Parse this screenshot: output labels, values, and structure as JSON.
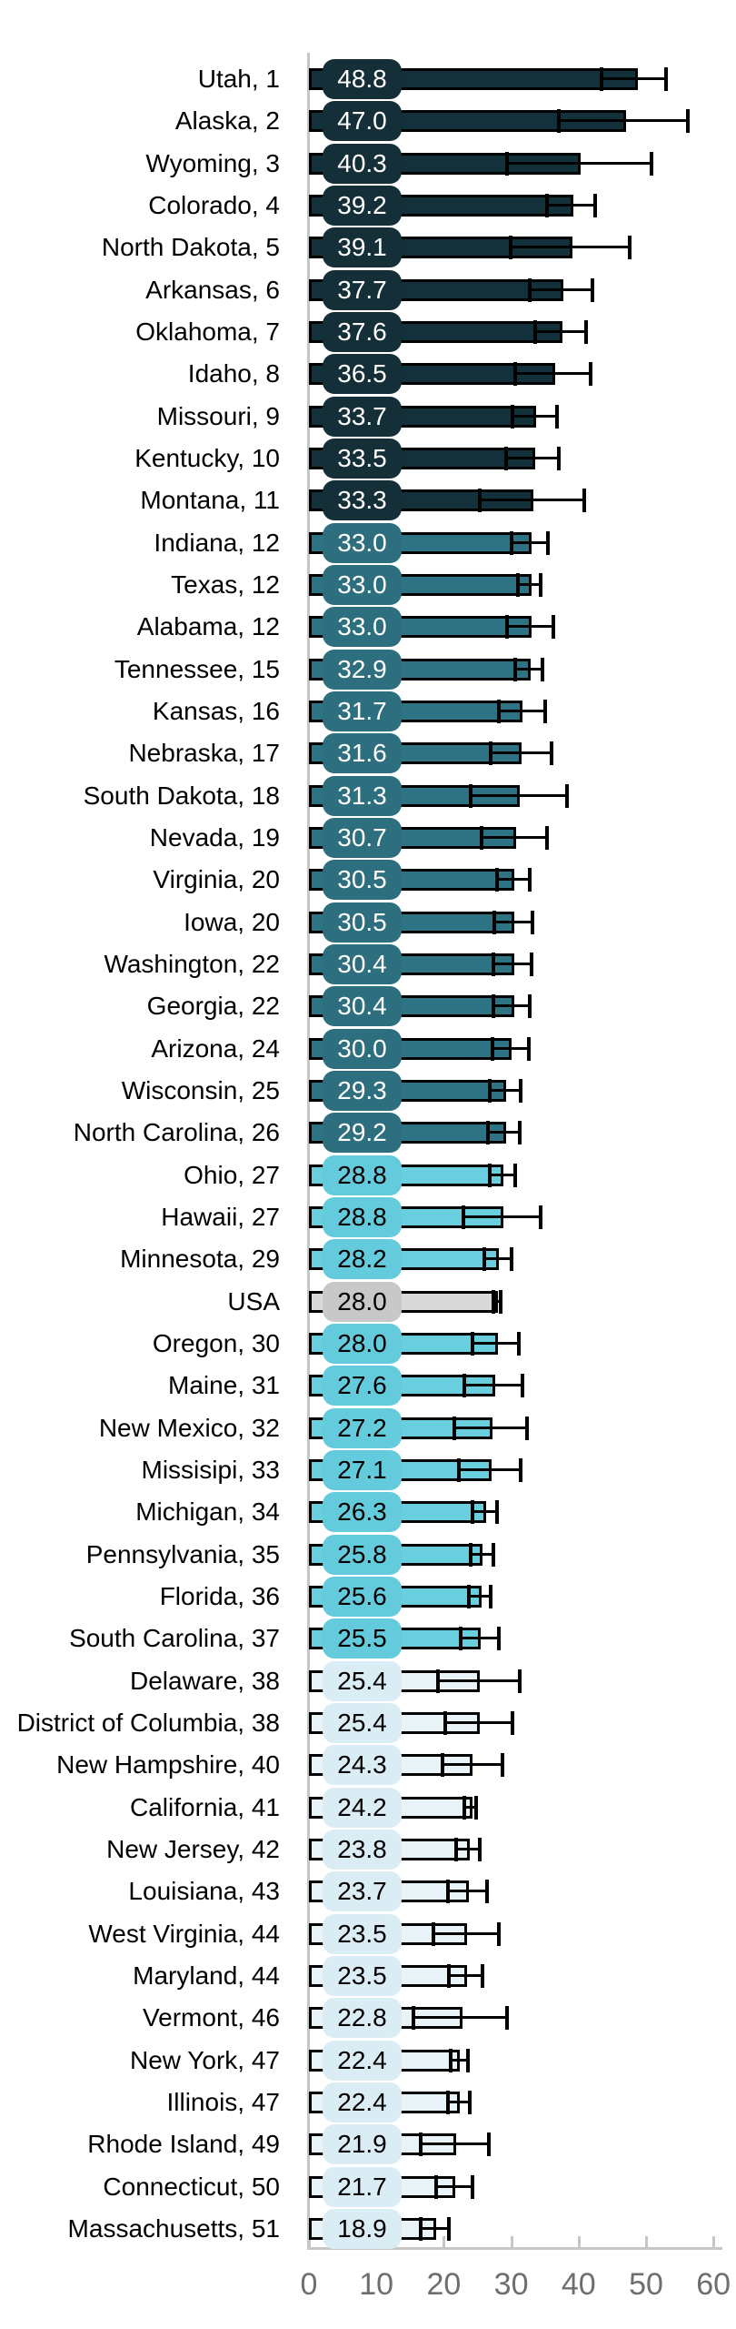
{
  "chart_data": {
    "type": "bar",
    "orientation": "horizontal",
    "title": "",
    "xlabel": "",
    "ylabel": "",
    "xlim": [
      0,
      62
    ],
    "x_ticks": [
      0,
      10,
      20,
      30,
      40,
      50,
      60
    ],
    "x_tick_labels": [
      "0",
      "10",
      "20",
      "30",
      "40",
      "50",
      "60"
    ],
    "grid": false,
    "legend": false,
    "error_bars": true,
    "colors": {
      "dark": {
        "badge": "#142f38",
        "bar": "#13313b",
        "text": "#ffffff"
      },
      "teal": {
        "badge": "#2d6f7e",
        "bar": "#2e7383",
        "text": "#ffffff"
      },
      "cyan": {
        "badge": "#63cbdc",
        "bar": "#69cedd",
        "text": "#000000"
      },
      "gray": {
        "badge": "#c8c8c8",
        "bar": "#d9d9d9",
        "text": "#000000"
      },
      "pale": {
        "badge": "#dbedf4",
        "bar": "#e8f3f8",
        "text": "#000000"
      },
      "axis_line": "#c6c6c6",
      "tick_label": "#6e6e6e",
      "row_label": "#000000",
      "error_bar": "#000000"
    },
    "rows": [
      {
        "label": "Utah, 1",
        "state": "Utah",
        "rank": 1,
        "value": 48.8,
        "value_label": "48.8",
        "ci_low": 43.4,
        "ci_high": 53.0,
        "group": "dark"
      },
      {
        "label": "Alaska, 2",
        "state": "Alaska",
        "rank": 2,
        "value": 47.0,
        "value_label": "47.0",
        "ci_low": 37.1,
        "ci_high": 56.2,
        "group": "dark"
      },
      {
        "label": "Wyoming, 3",
        "state": "Wyoming",
        "rank": 3,
        "value": 40.3,
        "value_label": "40.3",
        "ci_low": 29.4,
        "ci_high": 50.8,
        "group": "dark"
      },
      {
        "label": "Colorado, 4",
        "state": "Colorado",
        "rank": 4,
        "value": 39.2,
        "value_label": "39.2",
        "ci_low": 35.3,
        "ci_high": 42.5,
        "group": "dark"
      },
      {
        "label": "North Dakota, 5",
        "state": "North Dakota",
        "rank": 5,
        "value": 39.1,
        "value_label": "39.1",
        "ci_low": 29.9,
        "ci_high": 47.6,
        "group": "dark"
      },
      {
        "label": "Arkansas, 6",
        "state": "Arkansas",
        "rank": 6,
        "value": 37.7,
        "value_label": "37.7",
        "ci_low": 32.8,
        "ci_high": 42.0,
        "group": "dark"
      },
      {
        "label": "Oklahoma, 7",
        "state": "Oklahoma",
        "rank": 7,
        "value": 37.6,
        "value_label": "37.6",
        "ci_low": 33.5,
        "ci_high": 41.1,
        "group": "dark"
      },
      {
        "label": "Idaho, 8",
        "state": "Idaho",
        "rank": 8,
        "value": 36.5,
        "value_label": "36.5",
        "ci_low": 30.6,
        "ci_high": 41.8,
        "group": "dark"
      },
      {
        "label": "Missouri, 9",
        "state": "Missouri",
        "rank": 9,
        "value": 33.7,
        "value_label": "33.7",
        "ci_low": 30.2,
        "ci_high": 36.8,
        "group": "dark"
      },
      {
        "label": "Kentucky, 10",
        "state": "Kentucky",
        "rank": 10,
        "value": 33.5,
        "value_label": "33.5",
        "ci_low": 29.2,
        "ci_high": 37.1,
        "group": "dark"
      },
      {
        "label": "Montana, 11",
        "state": "Montana",
        "rank": 11,
        "value": 33.3,
        "value_label": "33.3",
        "ci_low": 25.4,
        "ci_high": 40.9,
        "group": "dark"
      },
      {
        "label": "Indiana, 12",
        "state": "Indiana",
        "rank": 12,
        "value": 33.0,
        "value_label": "33.0",
        "ci_low": 30.0,
        "ci_high": 35.5,
        "group": "teal"
      },
      {
        "label": "Texas, 12",
        "state": "Texas",
        "rank": 12,
        "value": 33.0,
        "value_label": "33.0",
        "ci_low": 31.0,
        "ci_high": 34.4,
        "group": "teal"
      },
      {
        "label": "Alabama, 12",
        "state": "Alabama",
        "rank": 12,
        "value": 33.0,
        "value_label": "33.0",
        "ci_low": 29.4,
        "ci_high": 36.3,
        "group": "teal"
      },
      {
        "label": "Tennessee, 15",
        "state": "Tennessee",
        "rank": 15,
        "value": 32.9,
        "value_label": "32.9",
        "ci_low": 30.6,
        "ci_high": 34.7,
        "group": "teal"
      },
      {
        "label": "Kansas, 16",
        "state": "Kansas",
        "rank": 16,
        "value": 31.7,
        "value_label": "31.7",
        "ci_low": 28.1,
        "ci_high": 35.0,
        "group": "teal"
      },
      {
        "label": "Nebraska, 17",
        "state": "Nebraska",
        "rank": 17,
        "value": 31.6,
        "value_label": "31.6",
        "ci_low": 27.0,
        "ci_high": 36.0,
        "group": "teal"
      },
      {
        "label": "South Dakota, 18",
        "state": "South Dakota",
        "rank": 18,
        "value": 31.3,
        "value_label": "31.3",
        "ci_low": 24.0,
        "ci_high": 38.3,
        "group": "teal"
      },
      {
        "label": "Nevada, 19",
        "state": "Nevada",
        "rank": 19,
        "value": 30.7,
        "value_label": "30.7",
        "ci_low": 25.6,
        "ci_high": 35.3,
        "group": "teal"
      },
      {
        "label": "Virginia, 20",
        "state": "Virginia",
        "rank": 20,
        "value": 30.5,
        "value_label": "30.5",
        "ci_low": 27.9,
        "ci_high": 32.7,
        "group": "teal"
      },
      {
        "label": "Iowa, 20",
        "state": "Iowa",
        "rank": 20,
        "value": 30.5,
        "value_label": "30.5",
        "ci_low": 27.5,
        "ci_high": 33.2,
        "group": "teal"
      },
      {
        "label": "Washington, 22",
        "state": "Washington",
        "rank": 22,
        "value": 30.4,
        "value_label": "30.4",
        "ci_low": 27.3,
        "ci_high": 33.0,
        "group": "teal"
      },
      {
        "label": "Georgia, 22",
        "state": "Georgia",
        "rank": 22,
        "value": 30.4,
        "value_label": "30.4",
        "ci_low": 27.4,
        "ci_high": 32.7,
        "group": "teal"
      },
      {
        "label": "Arizona, 24",
        "state": "Arizona",
        "rank": 24,
        "value": 30.0,
        "value_label": "30.0",
        "ci_low": 27.2,
        "ci_high": 32.6,
        "group": "teal"
      },
      {
        "label": "Wisconsin, 25",
        "state": "Wisconsin",
        "rank": 25,
        "value": 29.3,
        "value_label": "29.3",
        "ci_low": 26.8,
        "ci_high": 31.4,
        "group": "teal"
      },
      {
        "label": "North Carolina, 26",
        "state": "North Carolina",
        "rank": 26,
        "value": 29.2,
        "value_label": "29.2",
        "ci_low": 26.6,
        "ci_high": 31.3,
        "group": "teal"
      },
      {
        "label": "Ohio, 27",
        "state": "Ohio",
        "rank": 27,
        "value": 28.8,
        "value_label": "28.8",
        "ci_low": 26.8,
        "ci_high": 30.6,
        "group": "cyan"
      },
      {
        "label": "Hawaii, 27",
        "state": "Hawaii",
        "rank": 27,
        "value": 28.8,
        "value_label": "28.8",
        "ci_low": 22.9,
        "ci_high": 34.4,
        "group": "cyan"
      },
      {
        "label": "Minnesota, 29",
        "state": "Minnesota",
        "rank": 29,
        "value": 28.2,
        "value_label": "28.2",
        "ci_low": 26.0,
        "ci_high": 30.0,
        "group": "cyan"
      },
      {
        "label": "USA",
        "state": "USA",
        "rank": null,
        "value": 28.0,
        "value_label": "28.0",
        "ci_low": 27.4,
        "ci_high": 28.5,
        "group": "gray"
      },
      {
        "label": "Oregon, 30",
        "state": "Oregon",
        "rank": 30,
        "value": 28.0,
        "value_label": "28.0",
        "ci_low": 24.3,
        "ci_high": 31.1,
        "group": "cyan"
      },
      {
        "label": "Maine, 31",
        "state": "Maine",
        "rank": 31,
        "value": 27.6,
        "value_label": "27.6",
        "ci_low": 23.1,
        "ci_high": 31.7,
        "group": "cyan"
      },
      {
        "label": "New Mexico, 32",
        "state": "New Mexico",
        "rank": 32,
        "value": 27.2,
        "value_label": "27.2",
        "ci_low": 21.6,
        "ci_high": 32.4,
        "group": "cyan"
      },
      {
        "label": "Missisipi, 33",
        "state": "Missisipi",
        "rank": 33,
        "value": 27.1,
        "value_label": "27.1",
        "ci_low": 22.3,
        "ci_high": 31.4,
        "group": "cyan"
      },
      {
        "label": "Michigan, 34",
        "state": "Michigan",
        "rank": 34,
        "value": 26.3,
        "value_label": "26.3",
        "ci_low": 24.2,
        "ci_high": 27.9,
        "group": "cyan"
      },
      {
        "label": "Pennsylvania, 35",
        "state": "Pennsylvania",
        "rank": 35,
        "value": 25.8,
        "value_label": "25.8",
        "ci_low": 24.0,
        "ci_high": 27.3,
        "group": "cyan"
      },
      {
        "label": "Florida, 36",
        "state": "Florida",
        "rank": 36,
        "value": 25.6,
        "value_label": "25.6",
        "ci_low": 23.7,
        "ci_high": 27.0,
        "group": "cyan"
      },
      {
        "label": "South Carolina, 37",
        "state": "South Carolina",
        "rank": 37,
        "value": 25.5,
        "value_label": "25.5",
        "ci_low": 22.5,
        "ci_high": 28.2,
        "group": "cyan"
      },
      {
        "label": "Delaware, 38",
        "state": "Delaware",
        "rank": 38,
        "value": 25.4,
        "value_label": "25.4",
        "ci_low": 19.2,
        "ci_high": 31.2,
        "group": "pale"
      },
      {
        "label": "District of Columbia, 38",
        "state": "District of Columbia",
        "rank": 38,
        "value": 25.4,
        "value_label": "25.4",
        "ci_low": 20.2,
        "ci_high": 30.2,
        "group": "pale"
      },
      {
        "label": "New Hampshire, 40",
        "state": "New Hampshire",
        "rank": 40,
        "value": 24.3,
        "value_label": "24.3",
        "ci_low": 19.8,
        "ci_high": 28.7,
        "group": "pale"
      },
      {
        "label": "California, 41",
        "state": "California",
        "rank": 41,
        "value": 24.2,
        "value_label": "24.2",
        "ci_low": 23.0,
        "ci_high": 24.8,
        "group": "pale"
      },
      {
        "label": "New Jersey, 42",
        "state": "New Jersey",
        "rank": 42,
        "value": 23.8,
        "value_label": "23.8",
        "ci_low": 21.9,
        "ci_high": 25.4,
        "group": "pale"
      },
      {
        "label": "Louisiana, 43",
        "state": "Louisiana",
        "rank": 43,
        "value": 23.7,
        "value_label": "23.7",
        "ci_low": 20.6,
        "ci_high": 26.4,
        "group": "pale"
      },
      {
        "label": "West Virginia, 44",
        "state": "West Virginia",
        "rank": 44,
        "value": 23.5,
        "value_label": "23.5",
        "ci_low": 18.4,
        "ci_high": 28.2,
        "group": "pale"
      },
      {
        "label": "Maryland, 44",
        "state": "Maryland",
        "rank": 44,
        "value": 23.5,
        "value_label": "23.5",
        "ci_low": 20.8,
        "ci_high": 25.8,
        "group": "pale"
      },
      {
        "label": "Vermont, 46",
        "state": "Vermont",
        "rank": 46,
        "value": 22.8,
        "value_label": "22.8",
        "ci_low": 15.5,
        "ci_high": 29.4,
        "group": "pale"
      },
      {
        "label": "New York, 47",
        "state": "New York",
        "rank": 47,
        "value": 22.4,
        "value_label": "22.4",
        "ci_low": 21.0,
        "ci_high": 23.6,
        "group": "pale"
      },
      {
        "label": "Illinois, 47",
        "state": "Illinois",
        "rank": 47,
        "value": 22.4,
        "value_label": "22.4",
        "ci_low": 20.6,
        "ci_high": 23.8,
        "group": "pale"
      },
      {
        "label": "Rhode Island, 49",
        "state": "Rhode Island",
        "rank": 49,
        "value": 21.9,
        "value_label": "21.9",
        "ci_low": 16.6,
        "ci_high": 26.7,
        "group": "pale"
      },
      {
        "label": "Connecticut, 50",
        "state": "Connecticut",
        "rank": 50,
        "value": 21.7,
        "value_label": "21.7",
        "ci_low": 18.9,
        "ci_high": 24.2,
        "group": "pale"
      },
      {
        "label": "Massachusetts, 51",
        "state": "Massachusetts",
        "rank": 51,
        "value": 18.9,
        "value_label": "18.9",
        "ci_low": 16.6,
        "ci_high": 20.7,
        "group": "pale"
      }
    ]
  }
}
